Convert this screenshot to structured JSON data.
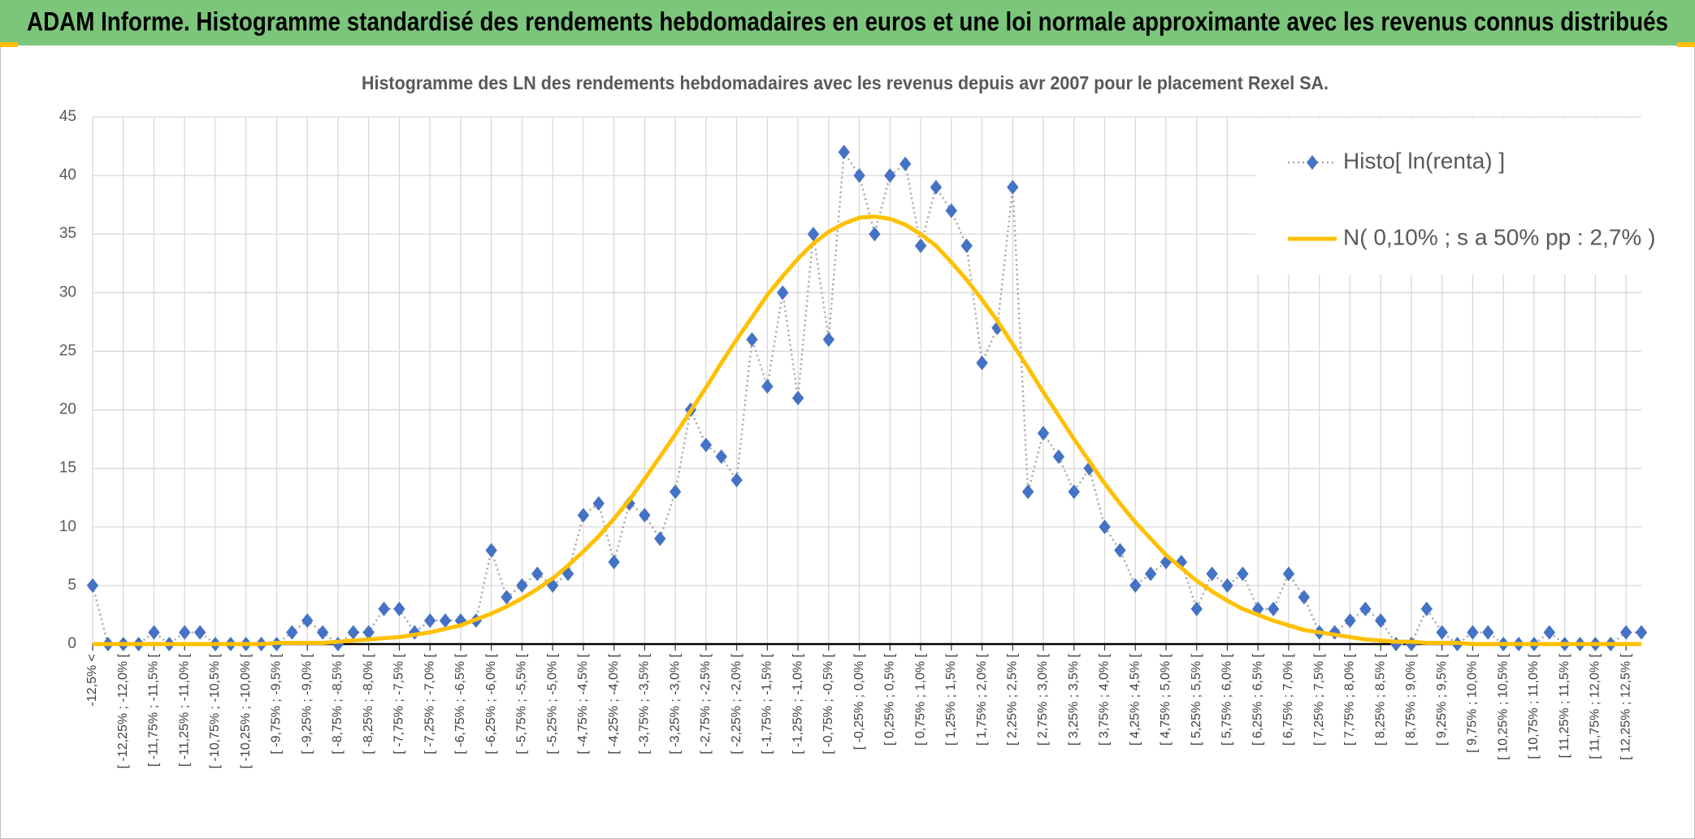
{
  "chart_data": {
    "type": "line",
    "title": "ADAM Informe. Histogramme standardisé des rendements hebdomadaires en euros et une loi normale approximante avec les revenus connus distribués",
    "subtitle": "Histogramme des LN des rendements hebdomadaires avec les revenus depuis avr 2007 pour le placement Rexel SA.",
    "categories": [
      "-12,5% <",
      null,
      "[ -12,25% ; -12,0% [",
      null,
      "[ -11,75% ; -11,5% [",
      null,
      "[ -11,25% ; -11,0% [",
      null,
      "[ -10,75% ; -10,5% [",
      null,
      "[ -10,25% ; -10,0% [",
      null,
      "[ -9,75% ; -9,5% [",
      null,
      "[ -9,25% ; -9,0% [",
      null,
      "[ -8,75% ; -8,5% [",
      null,
      "[ -8,25% ; -8,0% [",
      null,
      "[ -7,75% ; -7,5% [",
      null,
      "[ -7,25% ; -7,0% [",
      null,
      "[ -6,75% ; -6,5% [",
      null,
      "[ -6,25% ; -6,0% [",
      null,
      "[ -5,75% ; -5,5% [",
      null,
      "[ -5,25% ; -5,0% [",
      null,
      "[ -4,75% ; -4,5% [",
      null,
      "[ -4,25% ; -4,0% [",
      null,
      "[ -3,75% ; -3,5% [",
      null,
      "[ -3,25% ; -3,0% [",
      null,
      "[ -2,75% ; -2,5% [",
      null,
      "[ -2,25% ; -2,0% [",
      null,
      "[ -1,75% ; -1,5% [",
      null,
      "[ -1,25% ; -1,0% [",
      null,
      "[ -0,75% ; -0,5% [",
      null,
      "[ -0,25% ; 0,0% [",
      null,
      "[ 0,25% ; 0,5% [",
      null,
      "[ 0,75% ; 1,0% [",
      null,
      "[ 1,25% ; 1,5% [",
      null,
      "[ 1,75% ; 2,0% [",
      null,
      "[ 2,25% ; 2,5% [",
      null,
      "[ 2,75% ; 3,0% [",
      null,
      "[ 3,25% ; 3,5% [",
      null,
      "[ 3,75% ; 4,0% [",
      null,
      "[ 4,25% ; 4,5% [",
      null,
      "[ 4,75% ; 5,0% [",
      null,
      "[ 5,25% ; 5,5% [",
      null,
      "[ 5,75% ; 6,0% [",
      null,
      "[ 6,25% ; 6,5% [",
      null,
      "[ 6,75% ; 7,0% [",
      null,
      "[ 7,25% ; 7,5% [",
      null,
      "[ 7,75% ; 8,0% [",
      null,
      "[ 8,25% ; 8,5% [",
      null,
      "[ 8,75% ; 9,0% [",
      null,
      "[ 9,25% ; 9,5% [",
      null,
      "[ 9,75% ; 10,0% [",
      null,
      "[ 10,25% ; 10,5% [",
      null,
      "[ 10,75% ; 11,0% [",
      null,
      "[ 11,25% ; 11,5% [",
      null,
      "[ 11,75% ; 12,0% [",
      null,
      "[ 12,25% ; 12,5% [",
      null
    ],
    "series": [
      {
        "name": "Histo[ ln(renta) ]",
        "color": "#4472c4",
        "line_color": "#a6a6a6",
        "marker": "diamond",
        "values": [
          5,
          0,
          0,
          0,
          1,
          0,
          1,
          1,
          0,
          0,
          0,
          0,
          0,
          1,
          2,
          1,
          0,
          1,
          1,
          3,
          3,
          1,
          2,
          2,
          2,
          2,
          8,
          4,
          5,
          6,
          5,
          6,
          11,
          12,
          7,
          12,
          11,
          9,
          13,
          20,
          17,
          16,
          14,
          26,
          22,
          30,
          21,
          35,
          26,
          42,
          40,
          35,
          40,
          41,
          34,
          39,
          37,
          34,
          24,
          27,
          39,
          13,
          18,
          16,
          13,
          15,
          10,
          8,
          5,
          6,
          7,
          7,
          3,
          6,
          5,
          6,
          3,
          3,
          6,
          4,
          1,
          1,
          2,
          3,
          2,
          0,
          0,
          3,
          1,
          0,
          1,
          1,
          0,
          0,
          0,
          1,
          0,
          0,
          0,
          0,
          1,
          1
        ]
      },
      {
        "name": "N( 0,10% ; s a 50% pp : 2,7% )",
        "color": "#ffc000",
        "marker": "none",
        "values": [
          0,
          0,
          0,
          0,
          0,
          0,
          0,
          0,
          0,
          0,
          0,
          0,
          0.1,
          0.1,
          0.1,
          0.1,
          0.2,
          0.3,
          0.4,
          0.5,
          0.6,
          0.8,
          1.0,
          1.3,
          1.6,
          2.1,
          2.6,
          3.2,
          3.9,
          4.7,
          5.6,
          6.7,
          7.9,
          9.2,
          10.7,
          12.3,
          14.1,
          16.0,
          17.9,
          19.9,
          21.9,
          24.0,
          26.0,
          27.9,
          29.8,
          31.4,
          32.9,
          34.2,
          35.2,
          35.9,
          36.4,
          36.5,
          36.3,
          35.8,
          35.0,
          34.0,
          32.6,
          31.1,
          29.4,
          27.6,
          25.6,
          23.6,
          21.5,
          19.5,
          17.5,
          15.6,
          13.7,
          12.0,
          10.4,
          9.0,
          7.6,
          6.5,
          5.4,
          4.5,
          3.7,
          3.0,
          2.5,
          2.0,
          1.6,
          1.2,
          1.0,
          0.8,
          0.6,
          0.4,
          0.3,
          0.2,
          0.2,
          0.1,
          0.1,
          0.1,
          0,
          0,
          0,
          0,
          0,
          0,
          0,
          0,
          0,
          0,
          0,
          0
        ]
      }
    ],
    "ylim": [
      0,
      45
    ],
    "yticks": [
      0,
      5,
      10,
      15,
      20,
      25,
      30,
      35,
      40,
      45
    ],
    "grid": true,
    "legend": "upper right"
  }
}
